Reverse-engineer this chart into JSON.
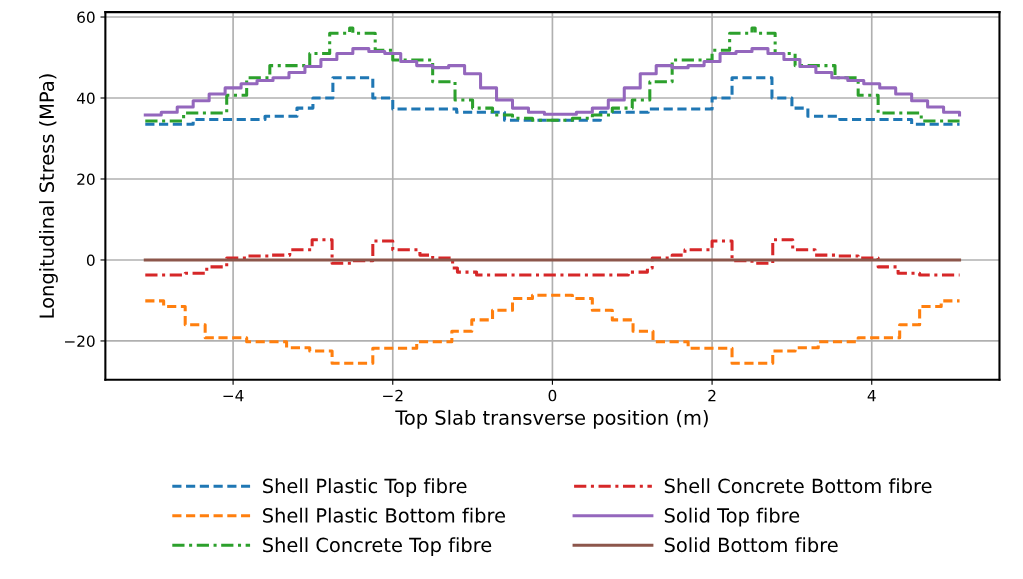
{
  "chart_data": {
    "type": "step",
    "xlabel": "Top Slab transverse position (m)",
    "ylabel": "Longitudinal Stress (MPa)",
    "xlim": [
      -5.6,
      5.6
    ],
    "xticks": [
      {
        "value": -4,
        "label": "−4"
      },
      {
        "value": -2,
        "label": "−2"
      },
      0,
      2,
      4
    ],
    "ylim": [
      -29.6,
      61.2
    ],
    "yticks": [
      {
        "value": -20,
        "label": "−20"
      },
      0,
      20,
      40,
      60
    ],
    "grid": true,
    "legend": "bottom",
    "series": [
      {
        "name": "Shell Plastic Top fibre",
        "color": "#1f77b4",
        "line_style": "dashed",
        "x": [
          -5.1,
          -4.5,
          -3.6,
          -3.2,
          -3.0,
          -2.75,
          -2.25,
          -2.0,
          -1.2,
          -0.6,
          0,
          0.6,
          1.2,
          2.0,
          2.25,
          2.75,
          3.0,
          3.2,
          3.6,
          4.5,
          5.1
        ],
        "values": [
          33.5,
          34.7,
          35.5,
          37.5,
          40,
          45,
          40,
          37.3,
          36.5,
          34.5,
          34.5,
          36.5,
          37.3,
          40,
          45,
          40,
          37.5,
          35.5,
          34.7,
          33.5,
          33.5
        ]
      },
      {
        "name": "Shell Plastic Bottom fibre",
        "color": "#ff7f0e",
        "line_style": "dashed",
        "x": [
          -5.1,
          -4.87,
          -4.6,
          -4.35,
          -3.83,
          -3.33,
          -3.04,
          -2.76,
          -2.25,
          -1.7,
          -1.26,
          -1.01,
          -0.75,
          -0.5,
          -0.25,
          0.25,
          0.5,
          0.75,
          1.01,
          1.26,
          1.7,
          2.25,
          2.76,
          3.04,
          3.33,
          3.83,
          4.35,
          4.6,
          4.87,
          5.1
        ],
        "values": [
          -10.1,
          -11.5,
          -16,
          -19.2,
          -20.2,
          -21.7,
          -22.5,
          -25.5,
          -21.8,
          -20.2,
          -17.6,
          -14.8,
          -12.4,
          -9.5,
          -8.7,
          -9.5,
          -12.4,
          -14.8,
          -17.6,
          -20.2,
          -21.8,
          -25.5,
          -22.5,
          -21.7,
          -20.2,
          -19.2,
          -16,
          -11.5,
          -10.1,
          -10.1
        ]
      },
      {
        "name": "Shell Concrete Top fibre",
        "color": "#2ca02c",
        "line_style": "dashdot",
        "x": [
          -5.1,
          -4.62,
          -4.08,
          -3.83,
          -3.54,
          -3.04,
          -2.79,
          -2.54,
          -2.5,
          -2.22,
          -2.0,
          -1.5,
          -1.22,
          -1.0,
          -0.75,
          -0.5,
          -0.25,
          0.25,
          0.5,
          0.75,
          1.0,
          1.22,
          1.5,
          2.0,
          2.22,
          2.5,
          2.54,
          2.79,
          3.04,
          3.54,
          3.83,
          4.08,
          4.62,
          5.1
        ],
        "values": [
          34.3,
          36.3,
          40.7,
          45,
          48,
          51,
          56,
          57.3,
          56,
          51.8,
          49.4,
          44,
          39.5,
          37.5,
          35.8,
          35,
          34.5,
          35,
          35.8,
          37.5,
          39.5,
          44,
          49.4,
          51.8,
          56,
          57.3,
          56,
          51,
          48,
          45,
          40.7,
          36.3,
          34.3,
          34.3
        ]
      },
      {
        "name": "Shell Concrete Bottom fibre",
        "color": "#d62728",
        "line_style": "dashdot",
        "x": [
          -5.1,
          -4.6,
          -4.33,
          -4.08,
          -3.83,
          -3.54,
          -3.29,
          -3.01,
          -2.76,
          -2.5,
          -2.25,
          -2.0,
          -1.66,
          -1.5,
          -1.25,
          -1.19,
          -0.95,
          0.95,
          1.19,
          1.25,
          1.5,
          1.66,
          2.0,
          2.25,
          2.5,
          2.76,
          3.01,
          3.29,
          3.54,
          3.83,
          4.08,
          4.33,
          4.6,
          5.1
        ],
        "values": [
          -3.7,
          -3.3,
          -1.7,
          0.5,
          1.0,
          1.2,
          2.5,
          5.0,
          -0.8,
          -0.2,
          4.7,
          2.5,
          1.2,
          0.5,
          -2.0,
          -3.0,
          -3.7,
          -3.0,
          -2.0,
          0.5,
          1.2,
          2.5,
          4.7,
          -0.2,
          -0.8,
          5.0,
          2.5,
          1.2,
          1.0,
          0.5,
          -1.7,
          -3.3,
          -3.7,
          -3.7
        ]
      },
      {
        "name": "Solid Top fibre",
        "color": "#9467bd",
        "line_style": "solid",
        "x": [
          -5.1,
          -4.9,
          -4.7,
          -4.5,
          -4.3,
          -4.1,
          -3.9,
          -3.7,
          -3.5,
          -3.3,
          -3.1,
          -2.9,
          -2.7,
          -2.5,
          -2.3,
          -2.1,
          -1.9,
          -1.7,
          -1.5,
          -1.3,
          -1.1,
          -0.9,
          -0.7,
          -0.5,
          -0.3,
          -0.1,
          0.1,
          0.3,
          0.5,
          0.7,
          0.9,
          1.1,
          1.3,
          1.5,
          1.7,
          1.9,
          2.1,
          2.3,
          2.5,
          2.7,
          2.9,
          3.1,
          3.3,
          3.5,
          3.7,
          3.9,
          4.1,
          4.3,
          4.5,
          4.7,
          4.9,
          5.1
        ],
        "values": [
          35.8,
          36.5,
          37.8,
          39.3,
          41.0,
          42.5,
          43.5,
          44.3,
          45.0,
          46.3,
          47.8,
          49.5,
          51.0,
          52.2,
          51.5,
          51.0,
          49.0,
          48.0,
          47.5,
          48.0,
          46.0,
          42.5,
          39.5,
          37.5,
          36.5,
          36.0,
          36.0,
          36.5,
          37.5,
          39.5,
          42.5,
          46.0,
          48.0,
          47.5,
          48.0,
          49.0,
          51.0,
          51.5,
          52.2,
          51.0,
          49.5,
          47.8,
          46.3,
          45.0,
          44.3,
          43.5,
          42.5,
          41.0,
          39.3,
          37.8,
          36.5,
          35.8
        ]
      },
      {
        "name": "Solid Bottom fibre",
        "color": "#8c564b",
        "line_style": "solid",
        "x": [
          -5.1,
          5.1
        ],
        "values": [
          0,
          0
        ]
      }
    ]
  }
}
